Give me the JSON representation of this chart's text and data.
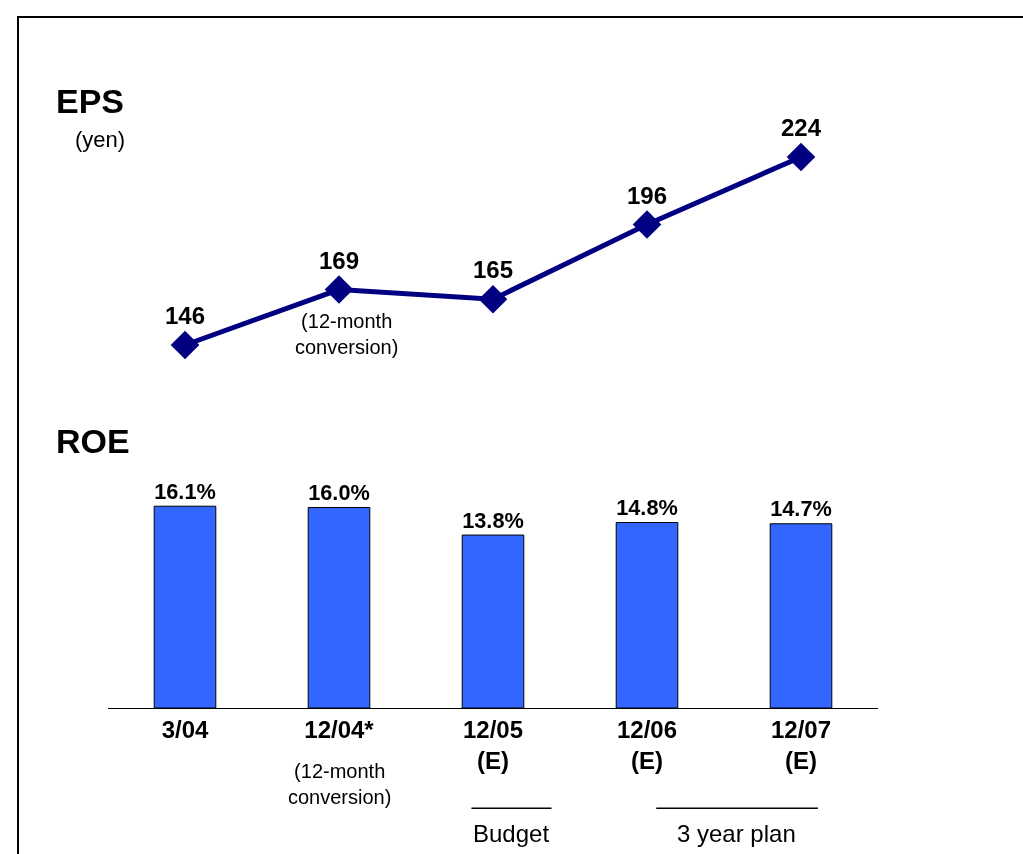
{
  "chart_data": [
    {
      "type": "line",
      "title": "EPS",
      "ylabel": "(yen)",
      "categories": [
        null,
        null,
        null,
        null,
        null
      ],
      "values": [
        146,
        169,
        165,
        196,
        224
      ],
      "color": "#000080",
      "marker": "diamond",
      "data_labels": true,
      "tick_labels": false,
      "legend": false,
      "grid": false,
      "annotations": [
        "(12-month\nconversion)"
      ]
    },
    {
      "type": "bar",
      "title": "ROE",
      "categories": [
        "3/04",
        "12/04*",
        "12/05\n(E)",
        "12/06\n(E)",
        "12/07\n(E)"
      ],
      "values": [
        16.1,
        16.0,
        13.8,
        14.8,
        14.7
      ],
      "color": "#3366ff",
      "value_labels": [
        "16.1%",
        "16.0%",
        "13.8%",
        "14.8%",
        "14.7%"
      ],
      "tick_labels": "x",
      "legend": false,
      "grid": false,
      "annotations": [
        "(12-month\nconversion)",
        "Budget",
        "3 year plan"
      ]
    }
  ]
}
